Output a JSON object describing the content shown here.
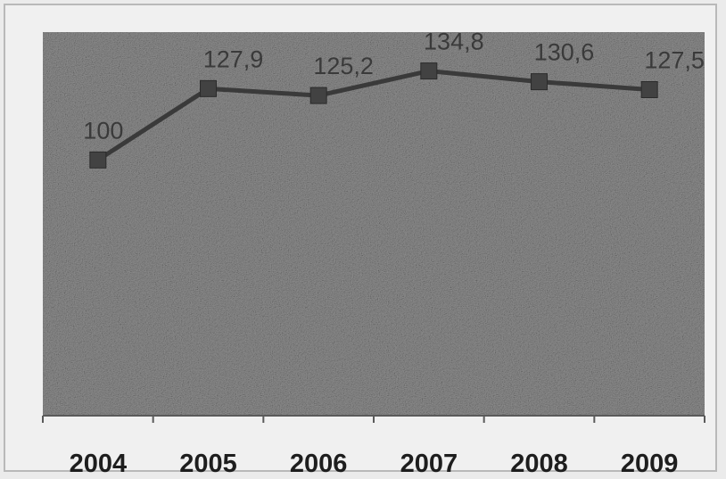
{
  "chart_data": {
    "type": "line",
    "categories": [
      "2004",
      "2005",
      "2006",
      "2007",
      "2008",
      "2009"
    ],
    "values": [
      100,
      127.9,
      125.2,
      134.8,
      130.6,
      127.5
    ],
    "value_labels": [
      "100",
      "127,9",
      "125,2",
      "134,8",
      "130,6",
      "127,5"
    ],
    "title": "",
    "xlabel": "",
    "ylabel": "",
    "ylim": [
      0,
      150
    ],
    "grid": false,
    "legend": "none",
    "colors": {
      "plot_background": "#8f8f8f",
      "line": "#3a3a3a",
      "marker": "#424242",
      "axis": "#5a5a5a",
      "text": "#1e1e1e"
    }
  }
}
